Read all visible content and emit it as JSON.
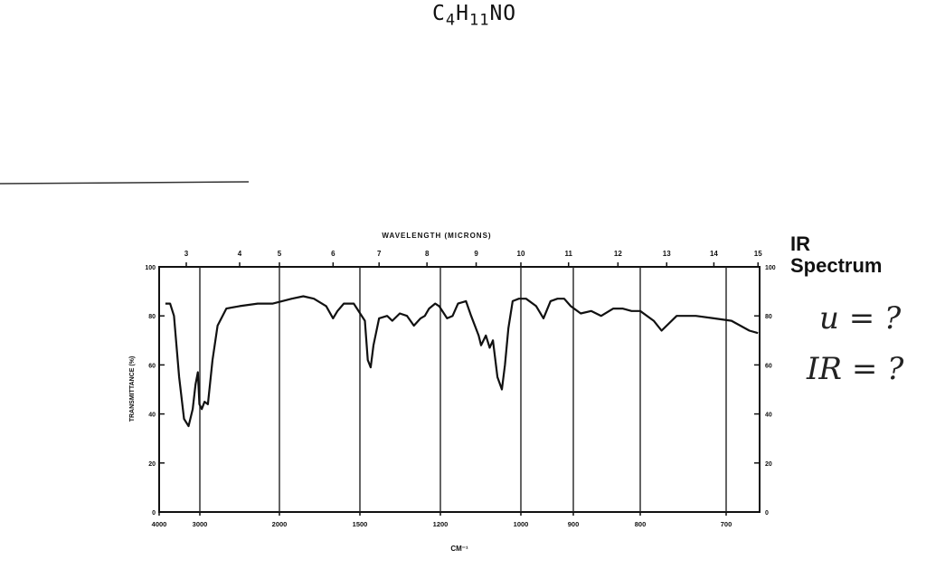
{
  "formula": {
    "base": "C",
    "n1": "4",
    "h": "H",
    "n2": "11",
    "rest": "NO"
  },
  "spectrum_label": {
    "line1": "IR",
    "line2": "Spectrum"
  },
  "handwriting": {
    "u": "u = ?",
    "ir": "IR = ?"
  },
  "chart_data": {
    "type": "line",
    "title": "",
    "top_axis_label": "WAVELENGTH (MICRONS)",
    "xlabel": "CM⁻¹",
    "ylabel": "TRANSMITTANCE (%)",
    "ylim": [
      0,
      100
    ],
    "y_ticks": [
      0,
      20,
      40,
      60,
      80,
      100
    ],
    "y_tick_labels_left": [
      "0",
      "20",
      "40",
      "60",
      "80",
      "100"
    ],
    "y_tick_labels_right": [
      "0",
      "20",
      "40",
      "60",
      "80",
      "100"
    ],
    "top_ticks_microns": [
      3,
      4,
      5,
      6,
      7,
      8,
      9,
      10,
      11,
      12,
      13,
      14,
      15
    ],
    "top_tick_labels": [
      "3",
      "4",
      "5",
      "6",
      "7",
      "8",
      "9",
      "10",
      "11",
      "12",
      "13",
      "14",
      "15"
    ],
    "bottom_ticks_cm": [
      4000,
      3000,
      2000,
      1500,
      1200,
      1000,
      900,
      800,
      700
    ],
    "bottom_tick_labels": [
      "4000",
      "3000",
      "2000",
      "1500",
      "1200",
      "1000",
      "900",
      "800",
      "700"
    ],
    "grid": "vertical lines at 3000, 2000, 1500, 1200, 1000, 900, 800, 700",
    "series": [
      {
        "x_microns": [
          2.6,
          2.68,
          2.75,
          2.85,
          2.95,
          3.05,
          3.15,
          3.22,
          3.28,
          3.32,
          3.36,
          3.4,
          3.45,
          3.52,
          3.6,
          3.75,
          4.0,
          4.4,
          4.8,
          5.2,
          5.4,
          5.6,
          5.85,
          6.0,
          6.1,
          6.25,
          6.5,
          6.75,
          6.8,
          6.85,
          6.9,
          7.0,
          7.15,
          7.25,
          7.4,
          7.55,
          7.7,
          7.85,
          7.95,
          8.05,
          8.2,
          8.3,
          8.45,
          8.55,
          8.65,
          8.8,
          8.9,
          9.05,
          9.1,
          9.2,
          9.28,
          9.35,
          9.45,
          9.55,
          9.62,
          9.7,
          9.8,
          9.95,
          10.1,
          10.3,
          10.45,
          10.6,
          10.75,
          10.9,
          11.05,
          11.25,
          11.45,
          11.65,
          11.9,
          12.1,
          12.3,
          12.5,
          12.75,
          12.9,
          13.2,
          13.6,
          14.0,
          14.4,
          14.8,
          15.0
        ],
        "y_percent": [
          85,
          85,
          80,
          55,
          38,
          35,
          42,
          52,
          57,
          44,
          42,
          45,
          44,
          62,
          76,
          83,
          84,
          85,
          85,
          87,
          88,
          87,
          84,
          79,
          82,
          85,
          85,
          78,
          62,
          59,
          68,
          79,
          80,
          78,
          81,
          80,
          76,
          79,
          80,
          83,
          85,
          84,
          79,
          80,
          85,
          86,
          80,
          72,
          68,
          72,
          67,
          70,
          55,
          50,
          60,
          75,
          86,
          87,
          87,
          84,
          79,
          86,
          87,
          87,
          84,
          81,
          82,
          80,
          83,
          83,
          82,
          82,
          78,
          74,
          80,
          80,
          79,
          78,
          74,
          73
        ]
      }
    ]
  }
}
